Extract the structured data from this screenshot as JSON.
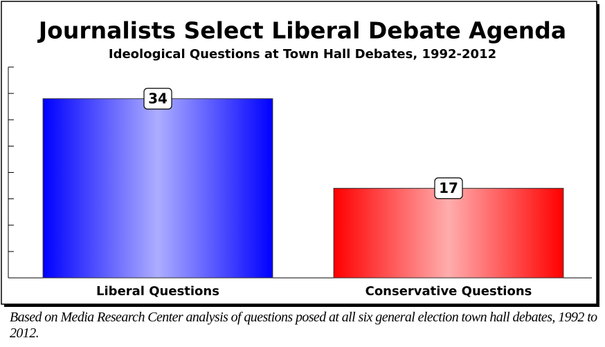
{
  "chart_data": {
    "type": "bar",
    "title": "Journalists Select Liberal Debate Agenda",
    "subtitle": "Ideological Questions at Town Hall Debates, 1992-2012",
    "categories": [
      "Liberal Questions",
      "Conservative Questions"
    ],
    "values": [
      34,
      17
    ],
    "colors": [
      "#0000ff",
      "#ff0000"
    ],
    "ylim": [
      0,
      40
    ],
    "yticks": [
      0,
      5,
      10,
      15,
      20,
      25,
      30,
      35,
      40
    ],
    "grid": false,
    "footnote": "Based on Media Research Center analysis of questions posed at all six general election town hall debates, 1992 to 2012."
  }
}
